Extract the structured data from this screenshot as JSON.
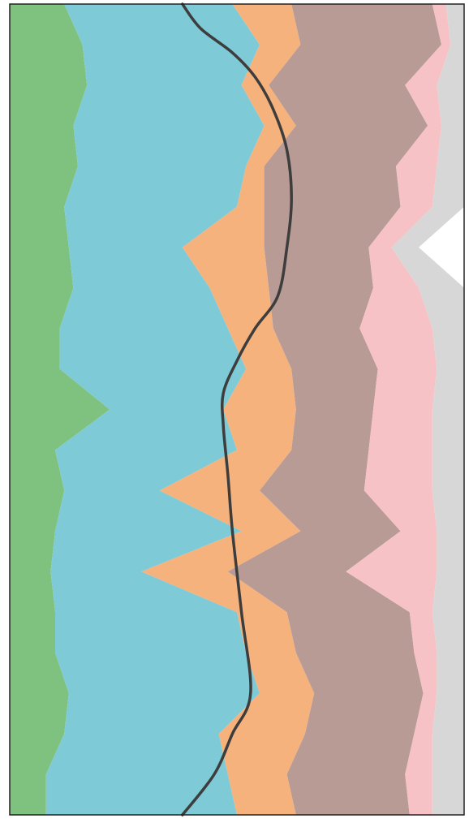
{
  "chart_data": {
    "type": "area",
    "orientation": "vertical-stacked",
    "title": "",
    "xlabel": "",
    "ylabel": "",
    "grid": false,
    "legend": "none",
    "depth": [
      0,
      5,
      10,
      15,
      20,
      25,
      30,
      35,
      40,
      45,
      50,
      55,
      60,
      65,
      70,
      75,
      80,
      85,
      90,
      95,
      100
    ],
    "depth_lim": [
      0,
      100
    ],
    "fraction_lim": [
      0,
      100
    ],
    "series": [
      {
        "color": "#7fc27f",
        "values": [
          12,
          16,
          17,
          14,
          15,
          12,
          13,
          14,
          11,
          11,
          22,
          10,
          12,
          10,
          9,
          10,
          10,
          13,
          12,
          8,
          8
        ]
      },
      {
        "color": "#7ecad6",
        "values": [
          37,
          39,
          34,
          42,
          37,
          38,
          25,
          30,
          37,
          41,
          25,
          40,
          21,
          41,
          20,
          40,
          42,
          42,
          34,
          40,
          42
        ]
      },
      {
        "color": "#f6b27c",
        "values": [
          13,
          9,
          6,
          7,
          4,
          6,
          18,
          13,
          10,
          10,
          16,
          12,
          22,
          13,
          19,
          11,
          11,
          12,
          19,
          13,
          13
        ]
      },
      {
        "color": "#b89b94",
        "values": [
          31,
          31,
          30,
          29,
          29,
          30,
          23,
          23,
          19,
          19,
          17,
          17,
          23,
          22,
          26,
          27,
          26,
          24,
          24,
          26,
          25
        ]
      },
      {
        "color": "#f7c2c6",
        "values": [
          3,
          2,
          7,
          3,
          9,
          7,
          5,
          10,
          16,
          13,
          13,
          14,
          15,
          8,
          20,
          5,
          5,
          3,
          4,
          6,
          5
        ]
      },
      {
        "color": "#d7d7d7",
        "values": [
          4,
          3,
          6,
          5,
          6,
          7,
          6,
          10,
          7,
          6,
          7,
          7,
          7,
          6,
          6,
          7,
          6,
          6,
          7,
          7,
          7
        ]
      }
    ],
    "trend_line": {
      "color": "#3d3d3d",
      "points": [
        [
          0,
          38
        ],
        [
          3,
          42
        ],
        [
          6,
          49
        ],
        [
          9,
          54
        ],
        [
          13,
          58
        ],
        [
          18,
          61
        ],
        [
          24,
          62
        ],
        [
          30,
          61
        ],
        [
          36,
          59
        ],
        [
          40,
          54
        ],
        [
          44,
          50
        ],
        [
          48,
          47
        ],
        [
          52,
          47
        ],
        [
          58,
          48
        ],
        [
          65,
          49
        ],
        [
          75,
          51
        ],
        [
          85,
          53
        ],
        [
          90,
          49
        ],
        [
          95,
          45
        ],
        [
          100,
          38
        ]
      ]
    }
  }
}
